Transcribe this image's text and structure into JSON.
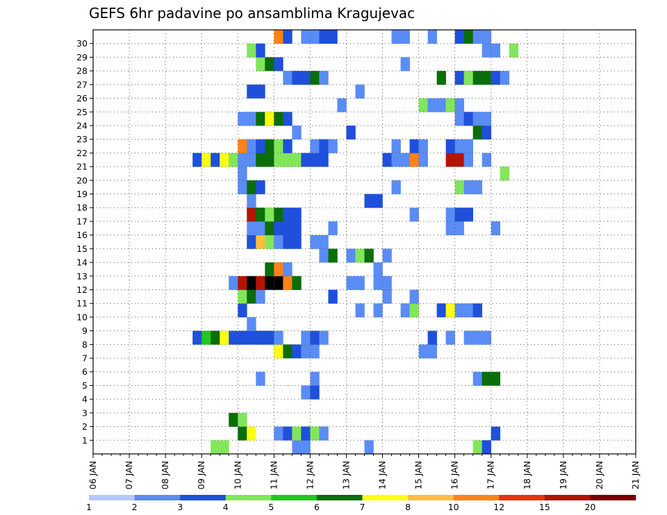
{
  "chart_data": {
    "type": "heatmap",
    "title": "GEFS 6hr padavine po ansamblima Kragujevac",
    "xlabel": "",
    "ylabel": "",
    "x_ticks": [
      "06 JAN",
      "07 JAN",
      "08 JAN",
      "09 JAN",
      "10 JAN",
      "11 JAN",
      "12 JAN",
      "13 JAN",
      "14 JAN",
      "15 JAN",
      "16 JAN",
      "17 JAN",
      "18 JAN",
      "19 JAN",
      "20 JAN",
      "21 JAN"
    ],
    "y_ticks": [
      "1",
      "2",
      "3",
      "4",
      "5",
      "6",
      "7",
      "8",
      "9",
      "10",
      "11",
      "12",
      "13",
      "14",
      "15",
      "16",
      "17",
      "18",
      "19",
      "20",
      "21",
      "22",
      "23",
      "24",
      "25",
      "26",
      "27",
      "28",
      "29",
      "30"
    ],
    "x_unit": "6-hour step (4 per day) starting 06 JAN 00z",
    "grid": true,
    "legend": {
      "placement": "bottom",
      "labels": [
        "1",
        "2",
        "3",
        "4",
        "5",
        "6",
        "7",
        "8",
        "10",
        "12",
        "15",
        "20"
      ],
      "colors": [
        "#b4c8ff",
        "#5a8cf5",
        "#1e50dc",
        "#82e65a",
        "#1ec81e",
        "#0a6e0a",
        "#ffff14",
        "#ffbe3c",
        "#ff8214",
        "#e63214",
        "#b41400",
        "#780000"
      ]
    },
    "cells": [
      {
        "m": 0,
        "t": [
          [
            37,
            3
          ],
          [
            38,
            3
          ],
          [
            46,
            1
          ],
          [
            47,
            1
          ],
          [
            54,
            1
          ],
          [
            66,
            3
          ],
          [
            67,
            2
          ]
        ]
      },
      {
        "m": 1,
        "t": [
          [
            40,
            5
          ],
          [
            41,
            6
          ],
          [
            44,
            1
          ],
          [
            45,
            2
          ],
          [
            46,
            3
          ],
          [
            47,
            2
          ],
          [
            48,
            3
          ],
          [
            49,
            1
          ],
          [
            68,
            2
          ]
        ]
      },
      {
        "m": 2,
        "t": [
          [
            39,
            5
          ],
          [
            40,
            3
          ]
        ]
      },
      {
        "m": 4,
        "t": [
          [
            47,
            1
          ],
          [
            48,
            2
          ]
        ]
      },
      {
        "m": 5,
        "t": [
          [
            42,
            1
          ],
          [
            48,
            1
          ],
          [
            66,
            1
          ],
          [
            67,
            5
          ],
          [
            68,
            5
          ]
        ]
      },
      {
        "m": 7,
        "t": [
          [
            44,
            6
          ],
          [
            45,
            5
          ],
          [
            46,
            2
          ],
          [
            47,
            1
          ],
          [
            48,
            1
          ],
          [
            60,
            1
          ],
          [
            61,
            1
          ]
        ]
      },
      {
        "m": 8,
        "t": [
          [
            35,
            2
          ],
          [
            36,
            4
          ],
          [
            37,
            5
          ],
          [
            38,
            6
          ],
          [
            39,
            2
          ],
          [
            40,
            2
          ],
          [
            41,
            2
          ],
          [
            42,
            2
          ],
          [
            43,
            2
          ],
          [
            44,
            1
          ],
          [
            47,
            1
          ],
          [
            48,
            2
          ],
          [
            49,
            1
          ],
          [
            61,
            2
          ],
          [
            63,
            1
          ],
          [
            65,
            1
          ],
          [
            66,
            1
          ],
          [
            67,
            1
          ]
        ]
      },
      {
        "m": 9,
        "t": [
          [
            41,
            1
          ]
        ]
      },
      {
        "m": 10,
        "t": [
          [
            40,
            2
          ],
          [
            53,
            1
          ],
          [
            55,
            1
          ],
          [
            58,
            1
          ],
          [
            59,
            3
          ],
          [
            62,
            2
          ],
          [
            63,
            6
          ],
          [
            64,
            1
          ],
          [
            65,
            1
          ],
          [
            66,
            2
          ]
        ]
      },
      {
        "m": 11,
        "t": [
          [
            40,
            3
          ],
          [
            41,
            5
          ],
          [
            42,
            1
          ],
          [
            50,
            2
          ],
          [
            56,
            1
          ],
          [
            59,
            1
          ]
        ]
      },
      {
        "m": 12,
        "t": [
          [
            39,
            1
          ],
          [
            40,
            10
          ],
          [
            41,
            12
          ],
          [
            42,
            10
          ],
          [
            43,
            12
          ],
          [
            44,
            12
          ],
          [
            45,
            8
          ],
          [
            46,
            5
          ],
          [
            52,
            1
          ],
          [
            53,
            1
          ],
          [
            55,
            1
          ],
          [
            56,
            1
          ]
        ]
      },
      {
        "m": 13,
        "t": [
          [
            43,
            5
          ],
          [
            44,
            8
          ],
          [
            45,
            1
          ],
          [
            55,
            1
          ]
        ]
      },
      {
        "m": 14,
        "t": [
          [
            49,
            1
          ],
          [
            50,
            5
          ],
          [
            52,
            1
          ],
          [
            53,
            3
          ],
          [
            54,
            5
          ],
          [
            56,
            1
          ]
        ]
      },
      {
        "m": 15,
        "t": [
          [
            41,
            2
          ],
          [
            42,
            7
          ],
          [
            43,
            3
          ],
          [
            44,
            1
          ],
          [
            45,
            2
          ],
          [
            46,
            2
          ],
          [
            48,
            1
          ],
          [
            49,
            1
          ]
        ]
      },
      {
        "m": 16,
        "t": [
          [
            41,
            1
          ],
          [
            42,
            1
          ],
          [
            43,
            5
          ],
          [
            44,
            2
          ],
          [
            45,
            2
          ],
          [
            46,
            2
          ],
          [
            50,
            1
          ],
          [
            63,
            1
          ],
          [
            64,
            1
          ],
          [
            68,
            1
          ]
        ]
      },
      {
        "m": 17,
        "t": [
          [
            41,
            10
          ],
          [
            42,
            5
          ],
          [
            43,
            3
          ],
          [
            44,
            5
          ],
          [
            45,
            2
          ],
          [
            46,
            2
          ],
          [
            59,
            1
          ],
          [
            63,
            1
          ],
          [
            64,
            2
          ],
          [
            65,
            2
          ]
        ]
      },
      {
        "m": 18,
        "t": [
          [
            41,
            1
          ],
          [
            54,
            2
          ],
          [
            55,
            2
          ]
        ]
      },
      {
        "m": 19,
        "t": [
          [
            40,
            1
          ],
          [
            41,
            5
          ],
          [
            42,
            2
          ],
          [
            57,
            1
          ],
          [
            64,
            3
          ],
          [
            65,
            1
          ],
          [
            66,
            1
          ]
        ]
      },
      {
        "m": 20,
        "t": [
          [
            40,
            1
          ],
          [
            69,
            3
          ]
        ]
      },
      {
        "m": 21,
        "t": [
          [
            35,
            2
          ],
          [
            36,
            6
          ],
          [
            37,
            2
          ],
          [
            38,
            6
          ],
          [
            39,
            3
          ],
          [
            40,
            1
          ],
          [
            41,
            1
          ],
          [
            42,
            5
          ],
          [
            43,
            5
          ],
          [
            44,
            3
          ],
          [
            45,
            3
          ],
          [
            46,
            3
          ],
          [
            47,
            2
          ],
          [
            48,
            2
          ],
          [
            49,
            2
          ],
          [
            56,
            2
          ],
          [
            57,
            1
          ],
          [
            58,
            1
          ],
          [
            59,
            8
          ],
          [
            60,
            1
          ],
          [
            63,
            10
          ],
          [
            64,
            10
          ],
          [
            65,
            1
          ],
          [
            67,
            1
          ]
        ]
      },
      {
        "m": 22,
        "t": [
          [
            40,
            8
          ],
          [
            41,
            1
          ],
          [
            42,
            2
          ],
          [
            43,
            5
          ],
          [
            44,
            3
          ],
          [
            45,
            2
          ],
          [
            48,
            1
          ],
          [
            49,
            2
          ],
          [
            50,
            1
          ],
          [
            57,
            1
          ],
          [
            59,
            2
          ],
          [
            60,
            1
          ],
          [
            63,
            2
          ],
          [
            64,
            1
          ],
          [
            65,
            1
          ]
        ]
      },
      {
        "m": 23,
        "t": [
          [
            46,
            1
          ],
          [
            52,
            2
          ],
          [
            66,
            5
          ],
          [
            67,
            2
          ]
        ]
      },
      {
        "m": 24,
        "t": [
          [
            40,
            1
          ],
          [
            41,
            1
          ],
          [
            42,
            5
          ],
          [
            43,
            6
          ],
          [
            44,
            5
          ],
          [
            45,
            2
          ],
          [
            64,
            1
          ],
          [
            65,
            2
          ],
          [
            66,
            1
          ],
          [
            67,
            1
          ]
        ]
      },
      {
        "m": 25,
        "t": [
          [
            51,
            1
          ],
          [
            60,
            3
          ],
          [
            61,
            1
          ],
          [
            62,
            1
          ],
          [
            63,
            3
          ],
          [
            64,
            1
          ]
        ]
      },
      {
        "m": 26,
        "t": [
          [
            41,
            2
          ],
          [
            42,
            2
          ],
          [
            53,
            1
          ]
        ]
      },
      {
        "m": 27,
        "t": [
          [
            45,
            1
          ],
          [
            46,
            2
          ],
          [
            47,
            2
          ],
          [
            48,
            5
          ],
          [
            49,
            1
          ],
          [
            62,
            5
          ],
          [
            64,
            2
          ],
          [
            65,
            3
          ],
          [
            66,
            5
          ],
          [
            67,
            5
          ],
          [
            68,
            2
          ],
          [
            69,
            1
          ]
        ]
      },
      {
        "m": 28,
        "t": [
          [
            42,
            3
          ],
          [
            43,
            5
          ],
          [
            44,
            2
          ],
          [
            58,
            1
          ]
        ]
      },
      {
        "m": 29,
        "t": [
          [
            41,
            3
          ],
          [
            42,
            2
          ],
          [
            67,
            1
          ],
          [
            68,
            1
          ],
          [
            70,
            3
          ]
        ]
      },
      {
        "m": 30,
        "t": [
          [
            44,
            8
          ],
          [
            45,
            2
          ],
          [
            47,
            1
          ],
          [
            48,
            1
          ],
          [
            49,
            2
          ],
          [
            50,
            2
          ],
          [
            57,
            1
          ],
          [
            58,
            1
          ],
          [
            61,
            1
          ],
          [
            64,
            2
          ],
          [
            65,
            5
          ],
          [
            66,
            1
          ],
          [
            67,
            1
          ]
        ]
      }
    ]
  }
}
